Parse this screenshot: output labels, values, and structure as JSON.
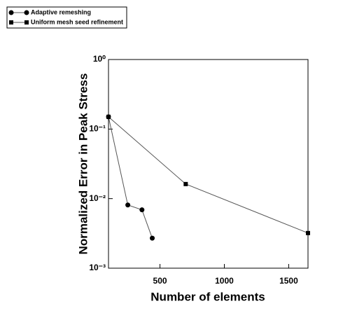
{
  "chart_data": {
    "type": "line",
    "xlabel": "Number of elements",
    "ylabel": "Normalized Error in Peak Stress",
    "xlim": [
      100,
      1650
    ],
    "xticks": [
      500,
      1000,
      1500
    ],
    "ylim": [
      0.001,
      1
    ],
    "yscale": "log",
    "yticks": [
      {
        "value": 1,
        "label": "10⁰"
      },
      {
        "value": 0.1,
        "label": "10⁻¹"
      },
      {
        "value": 0.01,
        "label": "10⁻²"
      },
      {
        "value": 0.001,
        "label": "10⁻³"
      }
    ],
    "legend": "upper left",
    "series": [
      {
        "name": "Adaptive remeshing",
        "color": "#000000",
        "marker": "circle",
        "x": [
          100,
          250,
          360,
          440
        ],
        "values": [
          0.15,
          0.0081,
          0.0069,
          0.0027
        ]
      },
      {
        "name": "Uniform mesh seed refinement",
        "color": "#000000",
        "marker": "square",
        "x": [
          100,
          700,
          1650
        ],
        "values": [
          0.15,
          0.0162,
          0.0032
        ]
      }
    ]
  }
}
